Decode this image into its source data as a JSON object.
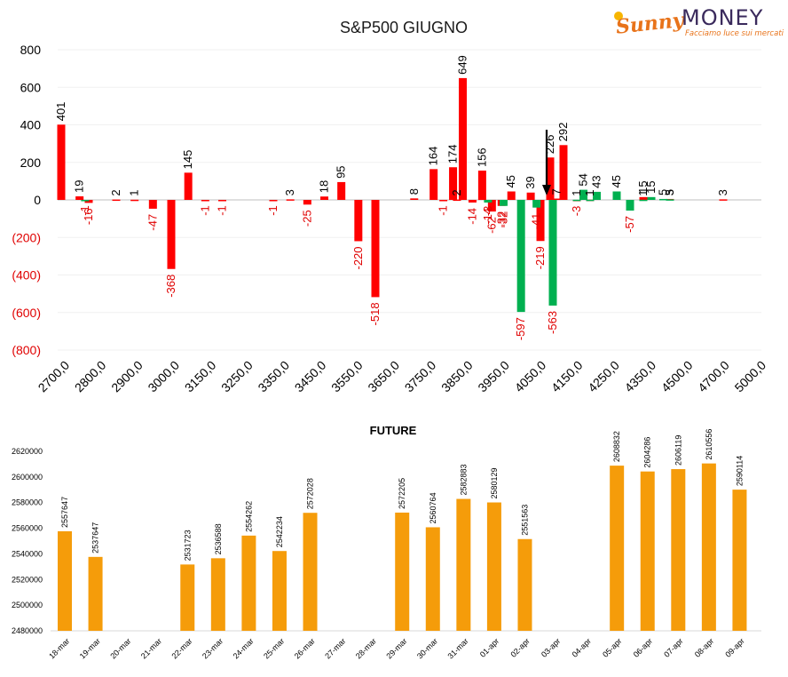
{
  "logo": {
    "word1": "Sunny",
    "word2": "MONEY",
    "tagline": "Facciamo luce sui mercati"
  },
  "chart_data": [
    {
      "type": "bar",
      "title": "S&P500 GIUGNO",
      "ylim": [
        -800,
        800
      ],
      "yticks": [
        "800",
        "600",
        "400",
        "200",
        "0",
        "(200)",
        "(400)",
        "(600)",
        "(800)"
      ],
      "xticks": [
        "2700,0",
        "2800,0",
        "2900,0",
        "3000,0",
        "3150,0",
        "3250,0",
        "3350,0",
        "3450,0",
        "3550,0",
        "3650,0",
        "3750,0",
        "3850,0",
        "3950,0",
        "4050,0",
        "4150,0",
        "4250,0",
        "4350,0",
        "4500,0",
        "4700,0",
        "5000,0"
      ],
      "colors": {
        "calls": "#ff0000",
        "puts": "#00b050",
        "neg_label": "#e00000"
      },
      "series": [
        {
          "values": [
            [
              2700,
              401
            ],
            [
              2750,
              19
            ],
            [
              2775,
              -16
            ],
            [
              2850,
              2
            ],
            [
              2900,
              1
            ],
            [
              2950,
              -47
            ],
            [
              3000,
              -368
            ],
            [
              3050,
              145
            ],
            [
              3100,
              -1
            ],
            [
              3150,
              -1
            ],
            [
              3300,
              -1
            ],
            [
              3350,
              3
            ],
            [
              3400,
              -25
            ],
            [
              3450,
              18
            ],
            [
              3500,
              95
            ],
            [
              3550,
              -220
            ],
            [
              3600,
              -518
            ],
            [
              3700,
              8
            ],
            [
              3750,
              164
            ],
            [
              3775,
              -1
            ],
            [
              3800,
              174
            ],
            [
              3810,
              2
            ],
            [
              3825,
              649
            ],
            [
              3850,
              -14
            ],
            [
              3875,
              156
            ],
            [
              3890,
              -3
            ],
            [
              3900,
              -62
            ],
            [
              3925,
              -32
            ],
            [
              3950,
              45
            ],
            [
              4000,
              39
            ],
            [
              4025,
              -219
            ],
            [
              4050,
              226
            ],
            [
              4075,
              7
            ],
            [
              4100,
              292
            ],
            [
              4150,
              -3
            ],
            [
              4200,
              1
            ],
            [
              4400,
              15
            ],
            [
              4500,
              5
            ],
            [
              4700,
              3
            ]
          ]
        },
        {
          "values": [
            [
              2765,
              -1
            ],
            [
              3890,
              -14
            ],
            [
              3930,
              -32
            ],
            [
              3975,
              -597
            ],
            [
              4015,
              -41
            ],
            [
              4060,
              -563
            ],
            [
              4150,
              1
            ],
            [
              4175,
              54
            ],
            [
              4200,
              1
            ],
            [
              4225,
              43
            ],
            [
              4300,
              45
            ],
            [
              4350,
              -57
            ],
            [
              4400,
              1
            ],
            [
              4430,
              15
            ],
            [
              4475,
              5
            ],
            [
              4500,
              3
            ]
          ]
        }
      ],
      "annotation": "arrow pointing down at 4025"
    },
    {
      "type": "bar",
      "title": "FUTURE",
      "ylim": [
        2480000,
        2630000
      ],
      "yticks": [
        "2620000",
        "2600000",
        "2580000",
        "2560000",
        "2540000",
        "2520000",
        "2500000",
        "2480000"
      ],
      "categories": [
        "18-mar",
        "19-mar",
        "20-mar",
        "21-mar",
        "22-mar",
        "23-mar",
        "24-mar",
        "25-mar",
        "26-mar",
        "27-mar",
        "28-mar",
        "29-mar",
        "30-mar",
        "31-mar",
        "01-apr",
        "02-apr",
        "03-apr",
        "04-apr",
        "05-apr",
        "06-apr",
        "07-apr",
        "08-apr",
        "09-apr"
      ],
      "values": [
        2557647,
        2537647,
        null,
        null,
        2531723,
        2536588,
        2554262,
        2542234,
        2572028,
        null,
        null,
        2572205,
        2560764,
        2582883,
        2580129,
        2551563,
        null,
        null,
        2608832,
        2604286,
        2606119,
        2610556,
        2590114
      ],
      "colors": {
        "bar": "#f59c0a"
      }
    }
  ]
}
